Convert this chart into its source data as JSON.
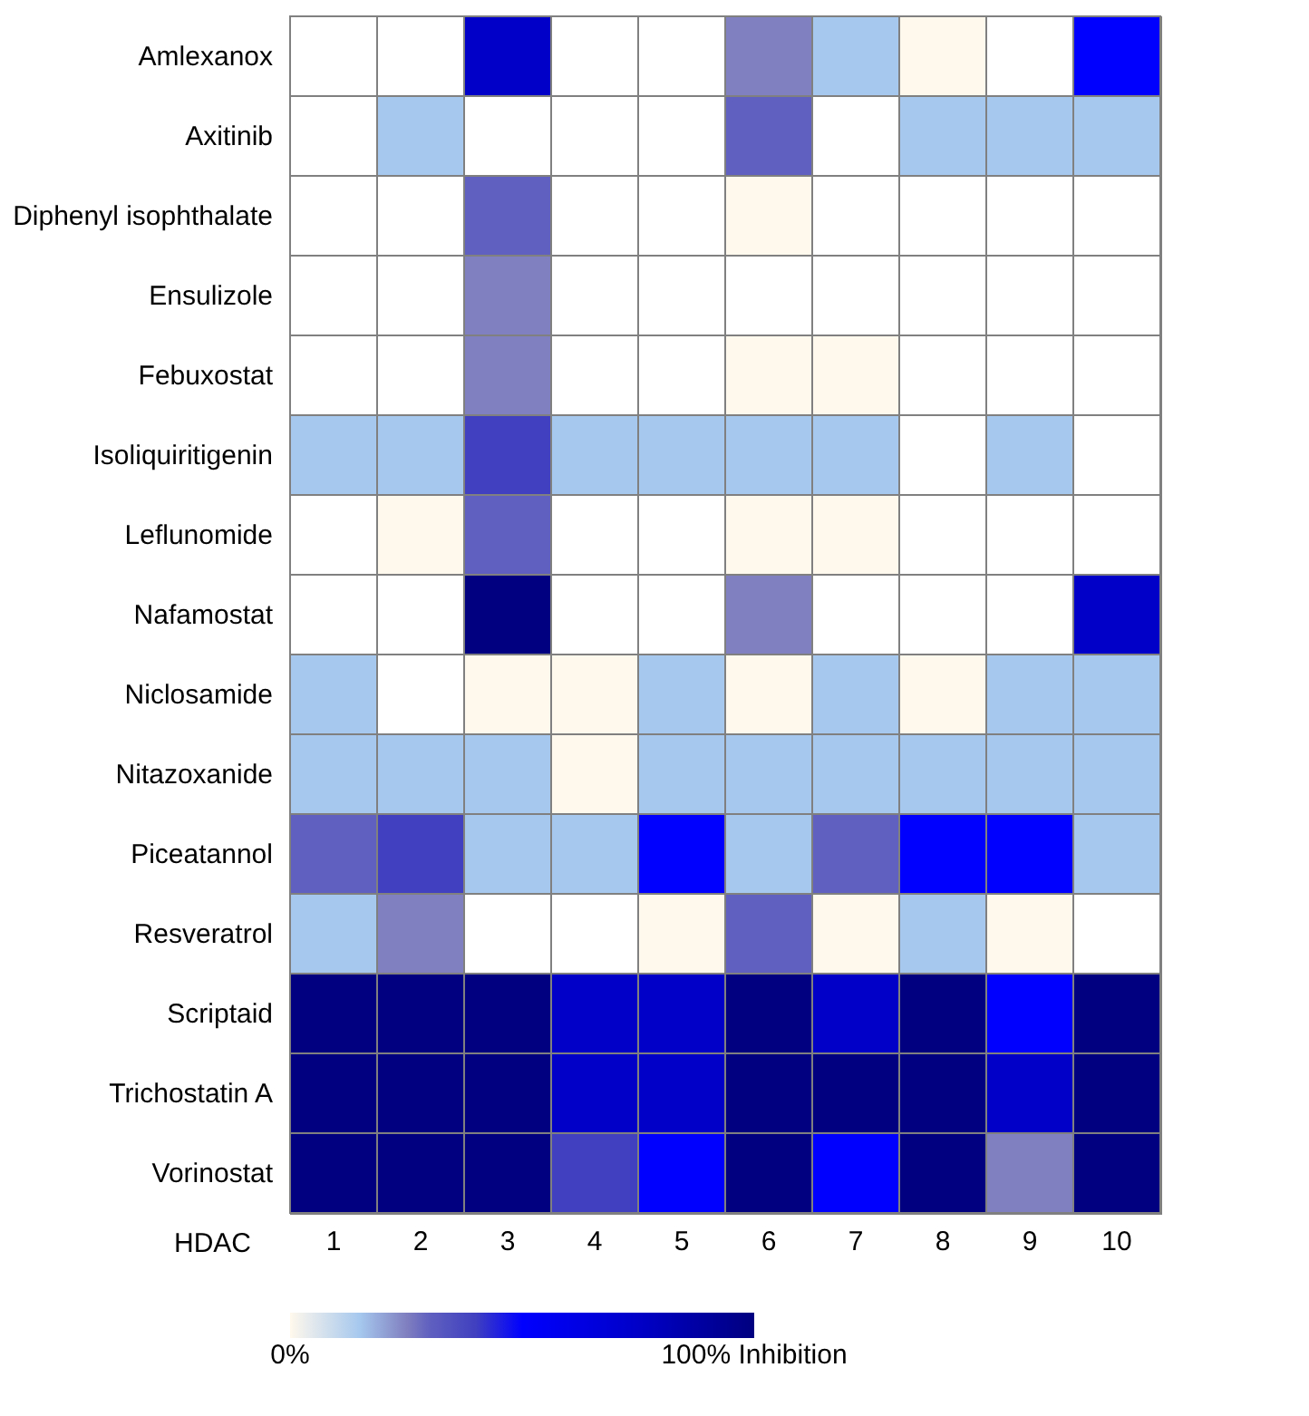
{
  "chart_data": {
    "type": "heatmap",
    "xlabel": "HDAC",
    "categories": [
      "1",
      "2",
      "3",
      "4",
      "5",
      "6",
      "7",
      "8",
      "9",
      "10"
    ],
    "y_categories": [
      "Amlexanox",
      "Axitinib",
      "Diphenyl isophthalate",
      "Ensulizole",
      "Febuxostat",
      "Isoliquiritigenin",
      "Leflunomide",
      "Nafamostat",
      "Niclosamide",
      "Nitazoxanide",
      "Piceatannol",
      "Resveratrol",
      "Scriptaid",
      "Trichostatin A",
      "Vorinostat"
    ],
    "cells": [
      [
        null,
        null,
        75,
        null,
        null,
        25,
        15,
        0,
        null,
        50
      ],
      [
        null,
        15,
        null,
        null,
        null,
        30,
        null,
        15,
        15,
        15
      ],
      [
        null,
        null,
        30,
        null,
        null,
        0,
        null,
        null,
        null,
        null
      ],
      [
        null,
        null,
        25,
        null,
        null,
        null,
        null,
        null,
        null,
        null
      ],
      [
        null,
        null,
        25,
        null,
        null,
        0,
        0,
        null,
        null,
        null
      ],
      [
        15,
        15,
        40,
        15,
        15,
        15,
        15,
        null,
        15,
        null
      ],
      [
        null,
        0,
        30,
        null,
        null,
        0,
        0,
        null,
        null,
        null
      ],
      [
        null,
        null,
        100,
        null,
        null,
        25,
        null,
        null,
        null,
        75
      ],
      [
        15,
        null,
        0,
        0,
        15,
        0,
        15,
        0,
        15,
        15
      ],
      [
        15,
        15,
        15,
        0,
        15,
        15,
        15,
        15,
        15,
        15
      ],
      [
        30,
        40,
        15,
        15,
        50,
        15,
        30,
        50,
        50,
        15
      ],
      [
        15,
        25,
        null,
        null,
        0,
        30,
        0,
        15,
        0,
        null
      ],
      [
        100,
        100,
        100,
        75,
        75,
        100,
        75,
        100,
        50,
        100
      ],
      [
        100,
        100,
        100,
        75,
        75,
        100,
        100,
        100,
        75,
        100
      ],
      [
        100,
        100,
        100,
        40,
        50,
        100,
        50,
        100,
        25,
        100
      ]
    ],
    "clim": [
      0,
      100
    ],
    "cticks": [
      {
        "value": 0,
        "label": "0%"
      },
      {
        "value": 100,
        "label": "100% Inhibition"
      }
    ]
  }
}
